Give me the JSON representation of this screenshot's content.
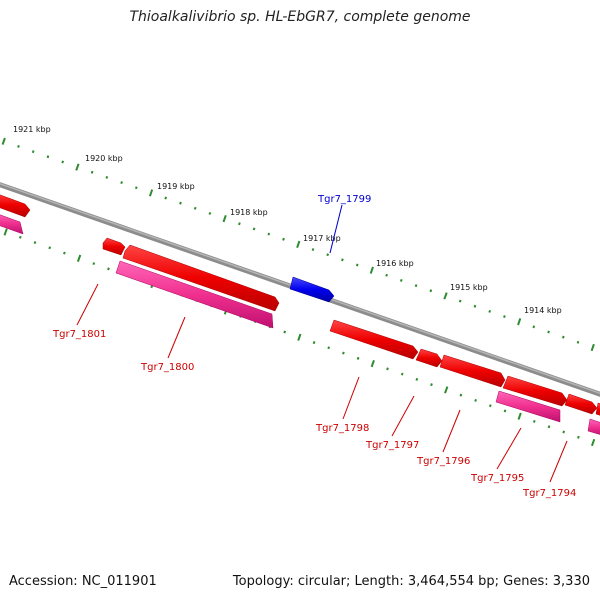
{
  "title": "Thioalkalivibrio sp. HL-EbGR7, complete genome",
  "footer": {
    "accession": "Accession: NC_011901",
    "topology": "Topology: circular; Length: 3,464,554 bp; Genes: 3,330"
  },
  "colors": {
    "backbone": "#7a7a7a",
    "tick": "#2e8b2e",
    "gene_forward": "#ee0000",
    "gene_reverse": "#ff1493",
    "gene_highlight": "#0000ee",
    "label_red": "#cc0000",
    "label_blue": "#0000cc"
  },
  "scale": {
    "unit": "kbp",
    "ticks": [
      {
        "label": "1921 kbp"
      },
      {
        "label": "1920 kbp"
      },
      {
        "label": "1919 kbp"
      },
      {
        "label": "1918 kbp"
      },
      {
        "label": "1917 kbp"
      },
      {
        "label": "1916 kbp"
      },
      {
        "label": "1915 kbp"
      },
      {
        "label": "1914 kbp"
      }
    ]
  },
  "genes": [
    {
      "name": "Tgr7_1801",
      "strand": "reverse-labelled",
      "color": "red"
    },
    {
      "name": "Tgr7_1800",
      "strand": "reverse-labelled",
      "color": "pink"
    },
    {
      "name": "Tgr7_1799",
      "strand": "forward-labelled",
      "color": "blue"
    },
    {
      "name": "Tgr7_1798",
      "strand": "reverse-labelled",
      "color": "red"
    },
    {
      "name": "Tgr7_1797",
      "strand": "reverse-labelled",
      "color": "red"
    },
    {
      "name": "Tgr7_1796",
      "strand": "reverse-labelled",
      "color": "red"
    },
    {
      "name": "Tgr7_1795",
      "strand": "reverse-labelled",
      "color": "pink"
    },
    {
      "name": "Tgr7_1794",
      "strand": "reverse-labelled",
      "color": "red"
    }
  ]
}
